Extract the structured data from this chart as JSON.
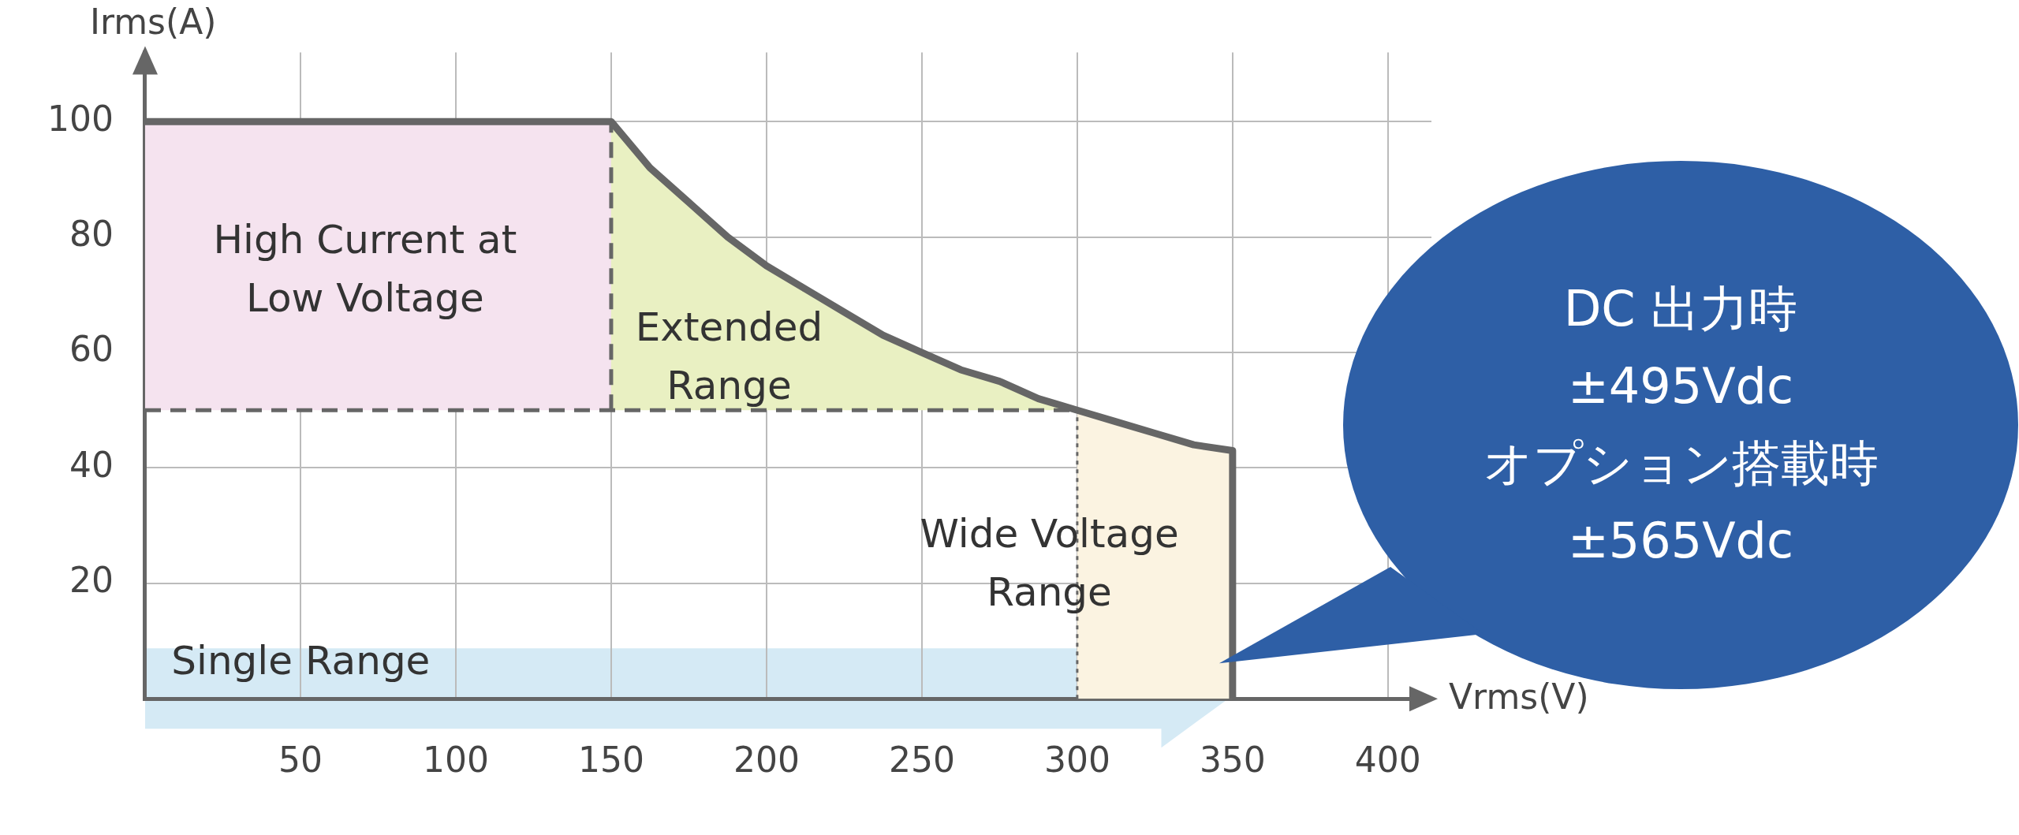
{
  "chart_data": {
    "type": "line",
    "xlabel": "Vrms(V)",
    "ylabel": "Irms(A)",
    "xlim": [
      0,
      414
    ],
    "ylim": [
      0,
      112
    ],
    "xticks": [
      50,
      100,
      150,
      200,
      250,
      300,
      350,
      400
    ],
    "yticks": [
      20,
      40,
      60,
      80,
      100
    ],
    "grid": true,
    "marker": "none",
    "series": [
      {
        "type": "area",
        "color": "#f5e3ef",
        "x": [
          0,
          150,
          150,
          0
        ],
        "values": [
          100,
          100,
          50,
          50
        ]
      },
      {
        "type": "area",
        "color": "#e9f0c2",
        "x": [
          150,
          162.5,
          175,
          187.5,
          200,
          212.5,
          225,
          237.5,
          250,
          262.5,
          275,
          287.5,
          300,
          150
        ],
        "values": [
          100,
          92,
          86,
          80,
          75,
          71,
          67,
          63,
          60,
          57,
          55,
          52,
          50,
          50
        ]
      },
      {
        "type": "area",
        "color": "#fbf3e1",
        "x": [
          300,
          312.5,
          325,
          337.5,
          350,
          350,
          300
        ],
        "values": [
          50,
          48,
          46,
          44,
          43,
          0,
          0
        ]
      },
      {
        "color": "#666666",
        "line_style": "dashed",
        "x": [
          0,
          300
        ],
        "values": [
          50,
          50
        ]
      },
      {
        "color": "#666666",
        "line_style": "dashed",
        "x": [
          150,
          150
        ],
        "values": [
          50,
          100
        ]
      },
      {
        "color": "#666666",
        "line_style": "dotted",
        "x": [
          300,
          300
        ],
        "values": [
          0,
          50
        ]
      },
      {
        "color": "#666666",
        "line_style": "solid",
        "x": [
          0,
          150,
          162.5,
          175,
          187.5,
          200,
          212.5,
          225,
          237.5,
          250,
          262.5,
          275,
          287.5,
          300,
          312.5,
          325,
          337.5,
          350,
          350
        ],
        "values": [
          100,
          100,
          92,
          86,
          80,
          75,
          71,
          67,
          63,
          60,
          57,
          55,
          52,
          50,
          48,
          46,
          44,
          43,
          0
        ]
      }
    ],
    "annotations": [
      "High Current at\nLow Voltage",
      "Extended\nRange",
      "Wide Voltage\nRange",
      "Single Range",
      "DC 出力時\n±495Vdc\nオプション搭載時\n±565Vdc"
    ]
  }
}
